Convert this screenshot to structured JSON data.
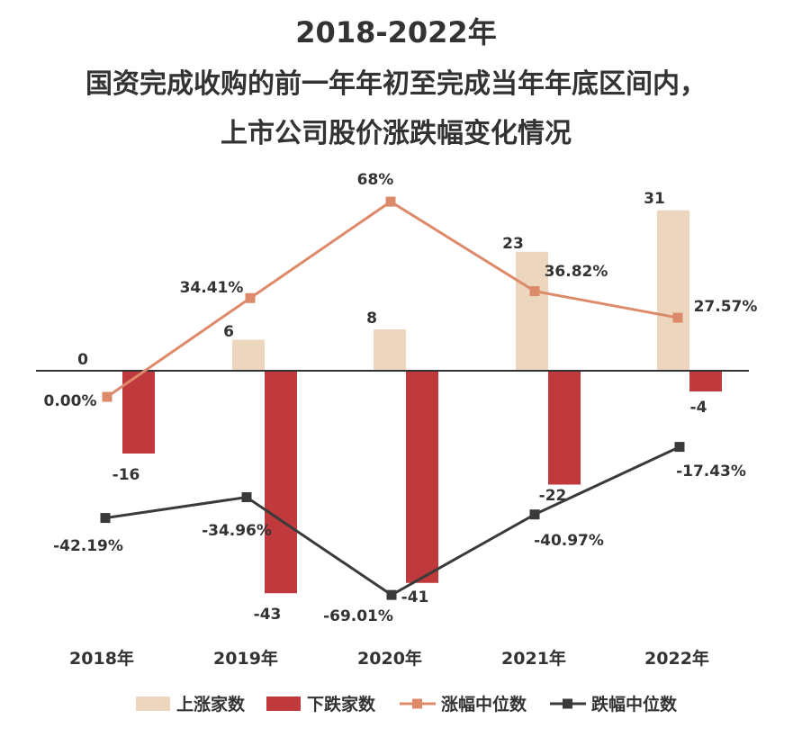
{
  "chart_data": {
    "type": "bar",
    "title": [
      "2018-2022年",
      "国资完成收购的前一年年初至完成当年年底区间内，",
      "上市公司股价涨跌幅变化情况"
    ],
    "categories": [
      "2018年",
      "2019年",
      "2020年",
      "2021年",
      "2022年"
    ],
    "series": [
      {
        "name": "上涨家数",
        "kind": "bar",
        "color": "#ecd6bd",
        "values": [
          0,
          6,
          8,
          23,
          31
        ],
        "labels": [
          "0",
          "6",
          "8",
          "23",
          "31"
        ]
      },
      {
        "name": "下跌家数",
        "kind": "bar",
        "color": "#c0393d",
        "values": [
          -16,
          -43,
          -41,
          -22,
          -4
        ],
        "labels": [
          "-16",
          "-43",
          "-41",
          "-22",
          "-4"
        ]
      },
      {
        "name": "涨幅中位数",
        "kind": "line",
        "color": "#dd8a6a",
        "values": [
          0.0,
          34.41,
          68.0,
          36.82,
          27.57
        ],
        "labels": [
          "0.00%",
          "34.41%",
          "68%",
          "36.82%",
          "27.57%"
        ]
      },
      {
        "name": "跌幅中位数",
        "kind": "line",
        "color": "#3a3a3a",
        "values": [
          -42.19,
          -34.96,
          -69.01,
          -40.97,
          -17.43
        ],
        "labels": [
          "-42.19%",
          "-34.96%",
          "-69.01%",
          "-40.97%",
          "-17.43%"
        ]
      }
    ],
    "xlabel": "",
    "ylabel": "",
    "legend": "bottom",
    "grid": false
  }
}
